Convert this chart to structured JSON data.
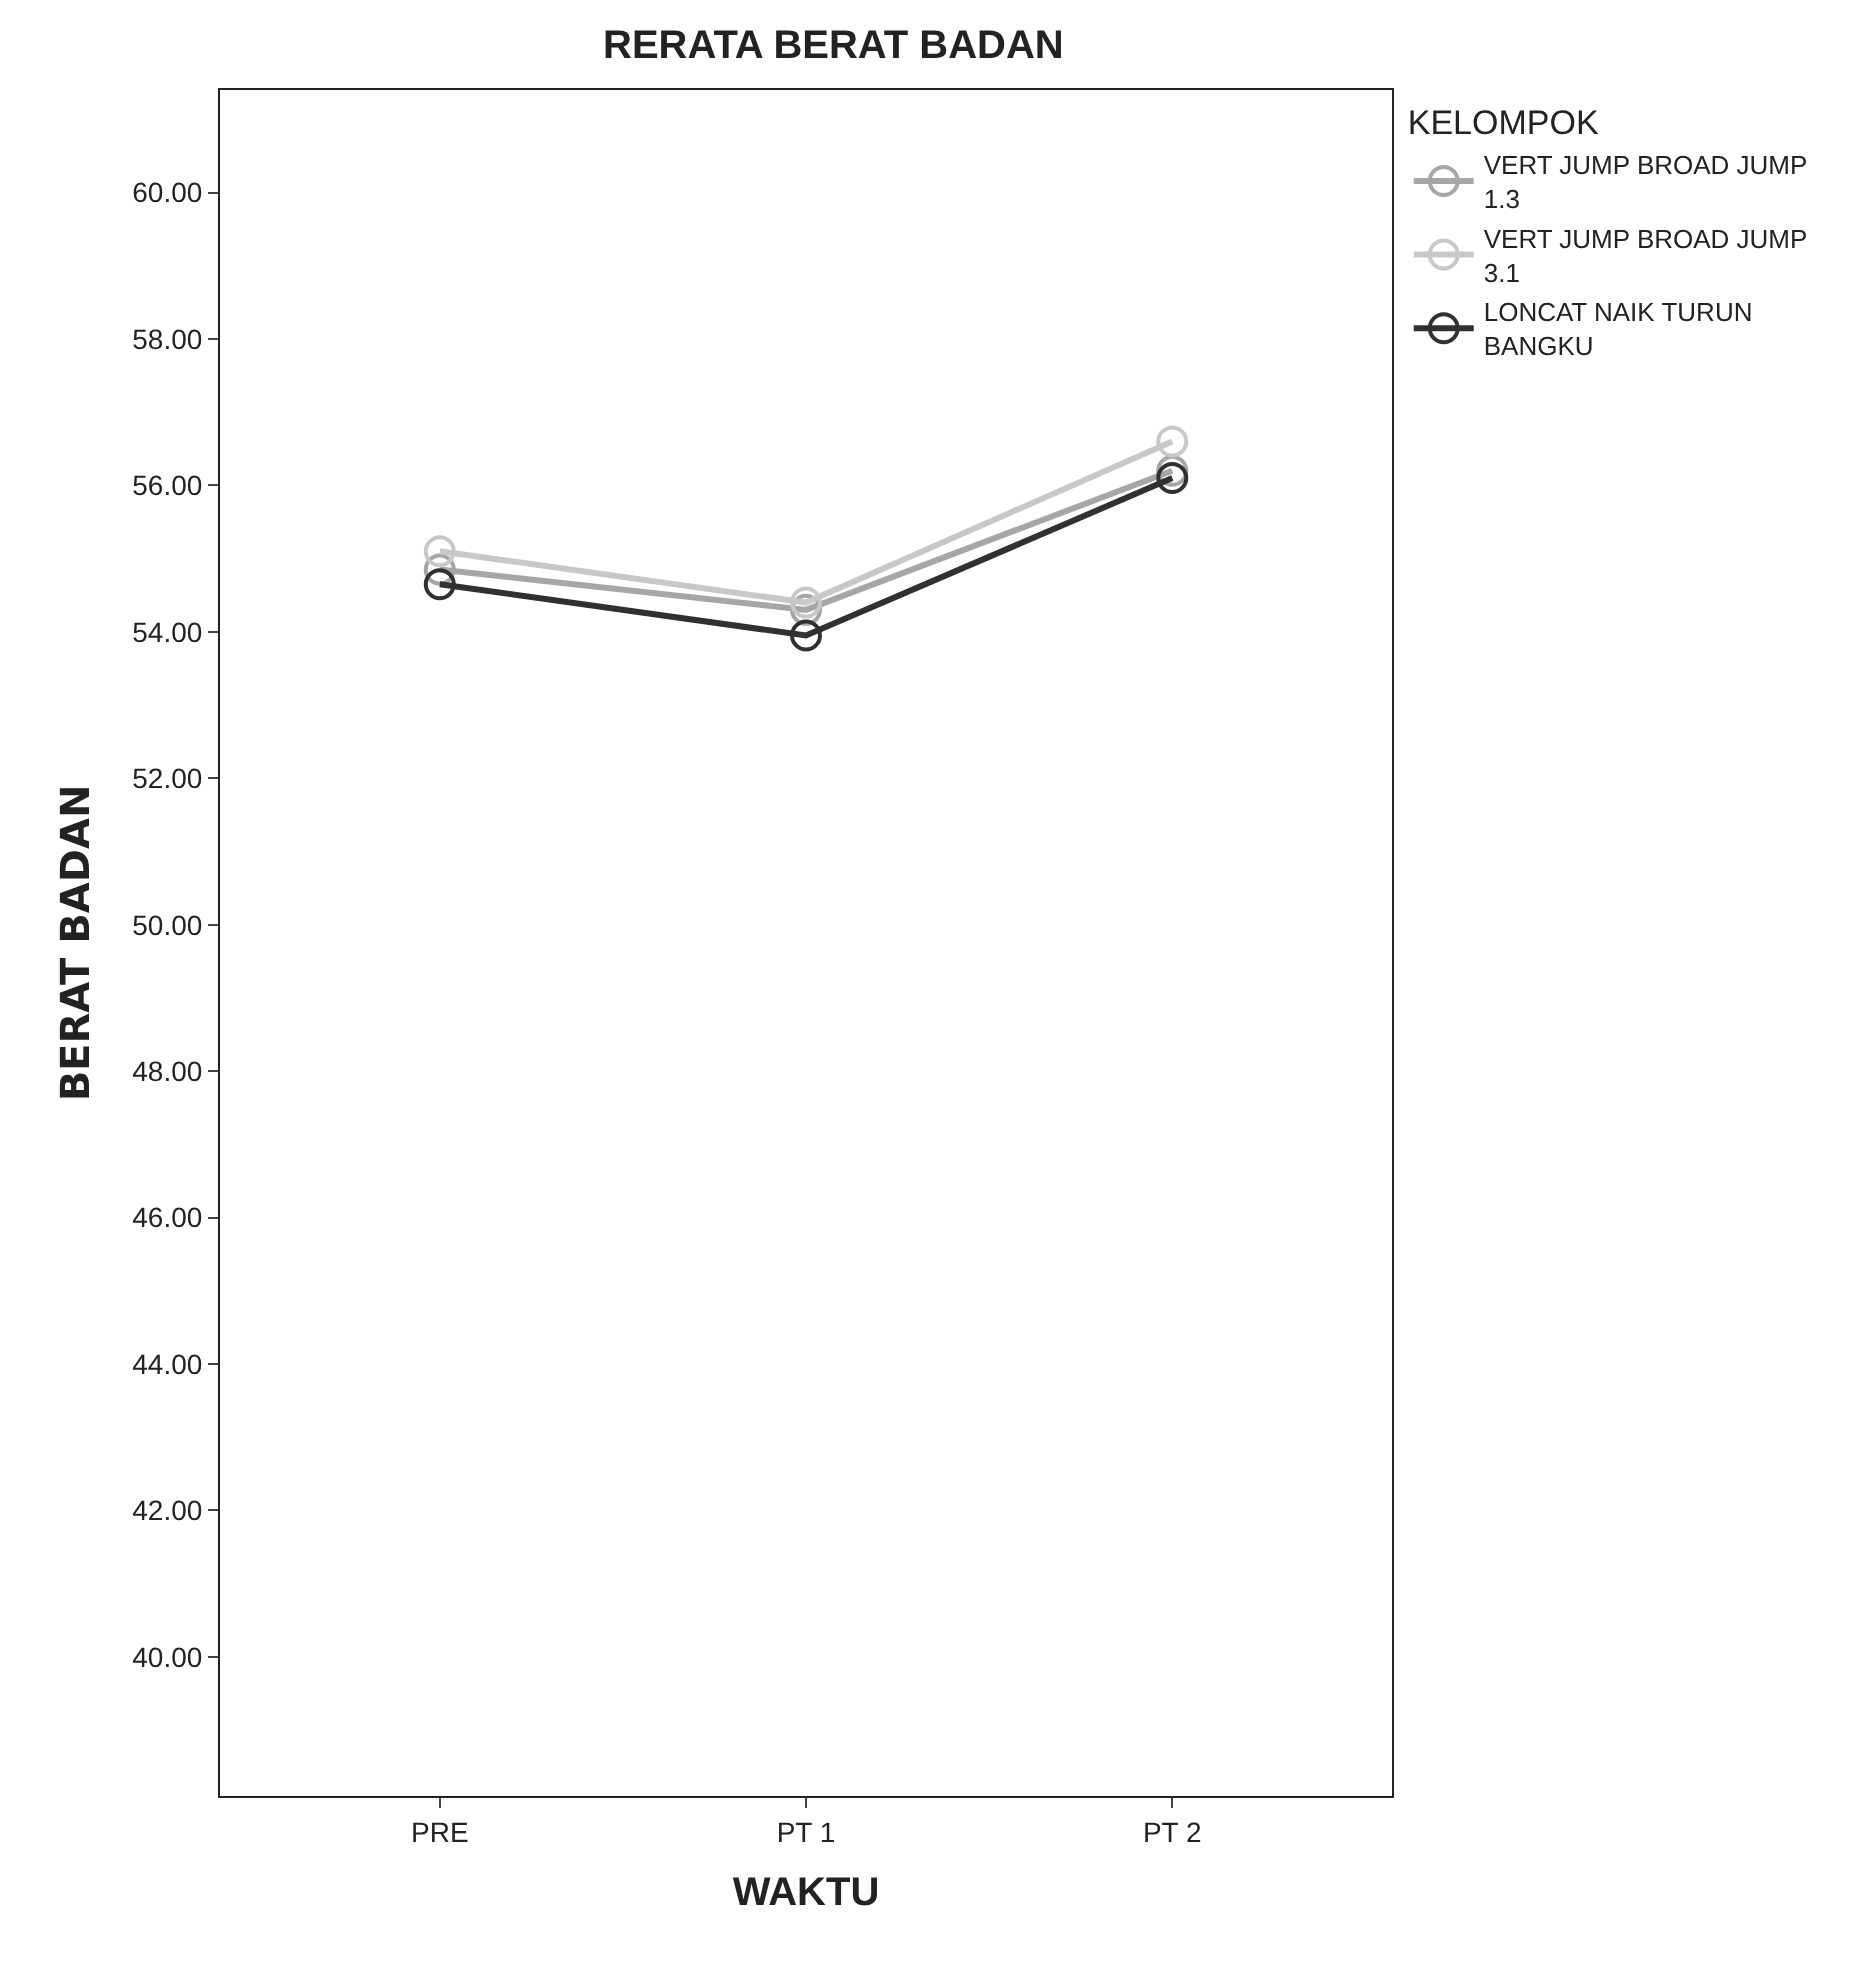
{
  "chart_data": {
    "type": "line",
    "title": "RERATA BERAT BADAN",
    "xlabel": "WAKTU",
    "ylabel": "BERAT BADAN",
    "legend_title": "KELOMPOK",
    "categories": [
      "PRE",
      "PT 1",
      "PT 2"
    ],
    "series": [
      {
        "name": "VERT JUMP BROAD JUMP 1.3",
        "color": "#a6a6a6",
        "values": [
          54.85,
          54.3,
          56.2
        ]
      },
      {
        "name": "VERT JUMP BROAD JUMP 3.1",
        "color": "#c8c8c8",
        "values": [
          55.1,
          54.4,
          56.6
        ]
      },
      {
        "name": "LONCAT NAIK TURUN BANGKU",
        "color": "#303030",
        "values": [
          54.65,
          53.95,
          56.1
        ]
      }
    ],
    "ylim": [
      38.1,
      61.4
    ],
    "yticks": [
      {
        "value": 40,
        "label": "40.00"
      },
      {
        "value": 42,
        "label": "42.00"
      },
      {
        "value": 44,
        "label": "44.00"
      },
      {
        "value": 46,
        "label": "46.00"
      },
      {
        "value": 48,
        "label": "48.00"
      },
      {
        "value": 50,
        "label": "50.00"
      },
      {
        "value": 52,
        "label": "52.00"
      },
      {
        "value": 54,
        "label": "54.00"
      },
      {
        "value": 56,
        "label": "56.00"
      },
      {
        "value": 58,
        "label": "58.00"
      },
      {
        "value": 60,
        "label": "60.00"
      }
    ],
    "legend": "top right",
    "marker": "circle",
    "line_style": "solid"
  }
}
